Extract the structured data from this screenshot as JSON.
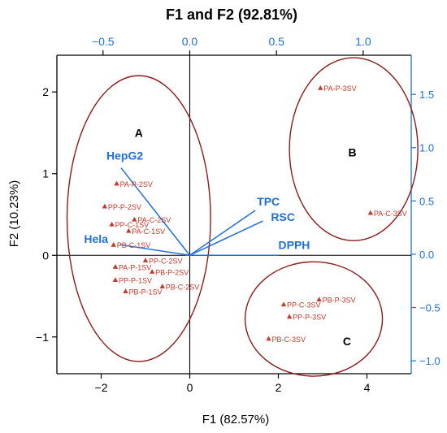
{
  "chart_data": {
    "type": "scatter",
    "title": "F1 and F2 (92.81%)",
    "xlabel": "F1  (82.57%)",
    "ylabel": "F2  (10.23%)",
    "xlim": [
      -3.0,
      5.0
    ],
    "ylim": [
      -1.45,
      2.45
    ],
    "xticks": [
      -2,
      0,
      2,
      4
    ],
    "yticks": [
      -1,
      0,
      1,
      2
    ],
    "xticklabels": [
      "−2",
      "0",
      "2",
      "4"
    ],
    "yticklabels": [
      "−1",
      "0",
      "1",
      "2"
    ],
    "top_axis": {
      "lim": [
        -0.766,
        1.277
      ],
      "ticks": [
        -0.5,
        0.0,
        0.5,
        1.0
      ],
      "ticklabels": [
        "−0.5",
        "0.0",
        "0.5",
        "1.0"
      ]
    },
    "right_axis": {
      "lim": [
        -1.121,
        1.867
      ],
      "ticks": [
        -1.0,
        -0.5,
        0.0,
        0.5,
        1.0,
        1.5
      ],
      "ticklabels": [
        "−1.0",
        "−0.5",
        "0.0",
        "0.5",
        "1.0",
        "1.5"
      ]
    },
    "grid": false,
    "colors": {
      "points": "#c0392b",
      "ellipses": "#8b1a1a",
      "loadings": "#1f6fd6",
      "axes": "#000000",
      "right_axis": "#1f6fd6"
    },
    "observations": [
      {
        "label": "PA-P-3SV",
        "x": 2.95,
        "y": 2.05
      },
      {
        "label": "PA-C-3SV",
        "x": 4.08,
        "y": 0.52
      },
      {
        "label": "PA-P-2SV",
        "x": -1.65,
        "y": 0.88
      },
      {
        "label": "PP-P-2SV",
        "x": -1.92,
        "y": 0.6
      },
      {
        "label": "PA-C-2SV",
        "x": -1.25,
        "y": 0.44
      },
      {
        "label": "PP-C-1SV",
        "x": -1.76,
        "y": 0.38
      },
      {
        "label": "PA-C-1SV",
        "x": -1.38,
        "y": 0.3
      },
      {
        "label": "PB-C-1SV",
        "x": -1.72,
        "y": 0.13
      },
      {
        "label": "PA-P-1SV",
        "x": -1.68,
        "y": -0.14
      },
      {
        "label": "PP-C-2SV",
        "x": -1.0,
        "y": -0.06
      },
      {
        "label": "PB-P-2SV",
        "x": -0.85,
        "y": -0.2
      },
      {
        "label": "PP-P-1SV",
        "x": -1.68,
        "y": -0.3
      },
      {
        "label": "PB-C-2SV",
        "x": -0.62,
        "y": -0.38
      },
      {
        "label": "PB-P-1SV",
        "x": -1.45,
        "y": -0.44
      },
      {
        "label": "PB-P-3SV",
        "x": 2.92,
        "y": -0.54
      },
      {
        "label": "PP-C-3SV",
        "x": 2.12,
        "y": -0.6
      },
      {
        "label": "PP-P-3SV",
        "x": 2.25,
        "y": -0.75
      },
      {
        "label": "PB-C-3SV",
        "x": 1.78,
        "y": -1.02
      }
    ],
    "loadings": [
      {
        "label": "HepG2",
        "x": -1.55,
        "y": 1.07
      },
      {
        "label": "TPC",
        "x": 1.48,
        "y": 0.55
      },
      {
        "label": "RSC",
        "x": 1.65,
        "y": 0.42
      },
      {
        "label": "DPPH",
        "x": 2.0,
        "y": 0.0
      },
      {
        "label": "Hela",
        "x": -1.58,
        "y": 0.13
      }
    ],
    "clusters": [
      {
        "label": "A",
        "cx": -1.15,
        "cy": 0.45,
        "rx": 1.62,
        "ry": 1.75
      },
      {
        "label": "B",
        "cx": 3.7,
        "cy": 1.3,
        "rx": 1.45,
        "ry": 1.12
      },
      {
        "label": "C",
        "cx": 2.8,
        "cy": -0.78,
        "rx": 1.55,
        "ry": 0.7
      }
    ],
    "cluster_label_positions": {
      "A": [
        -1.15,
        1.45
      ],
      "B": [
        3.67,
        1.21
      ],
      "C": [
        3.55,
        -1.1
      ]
    }
  }
}
